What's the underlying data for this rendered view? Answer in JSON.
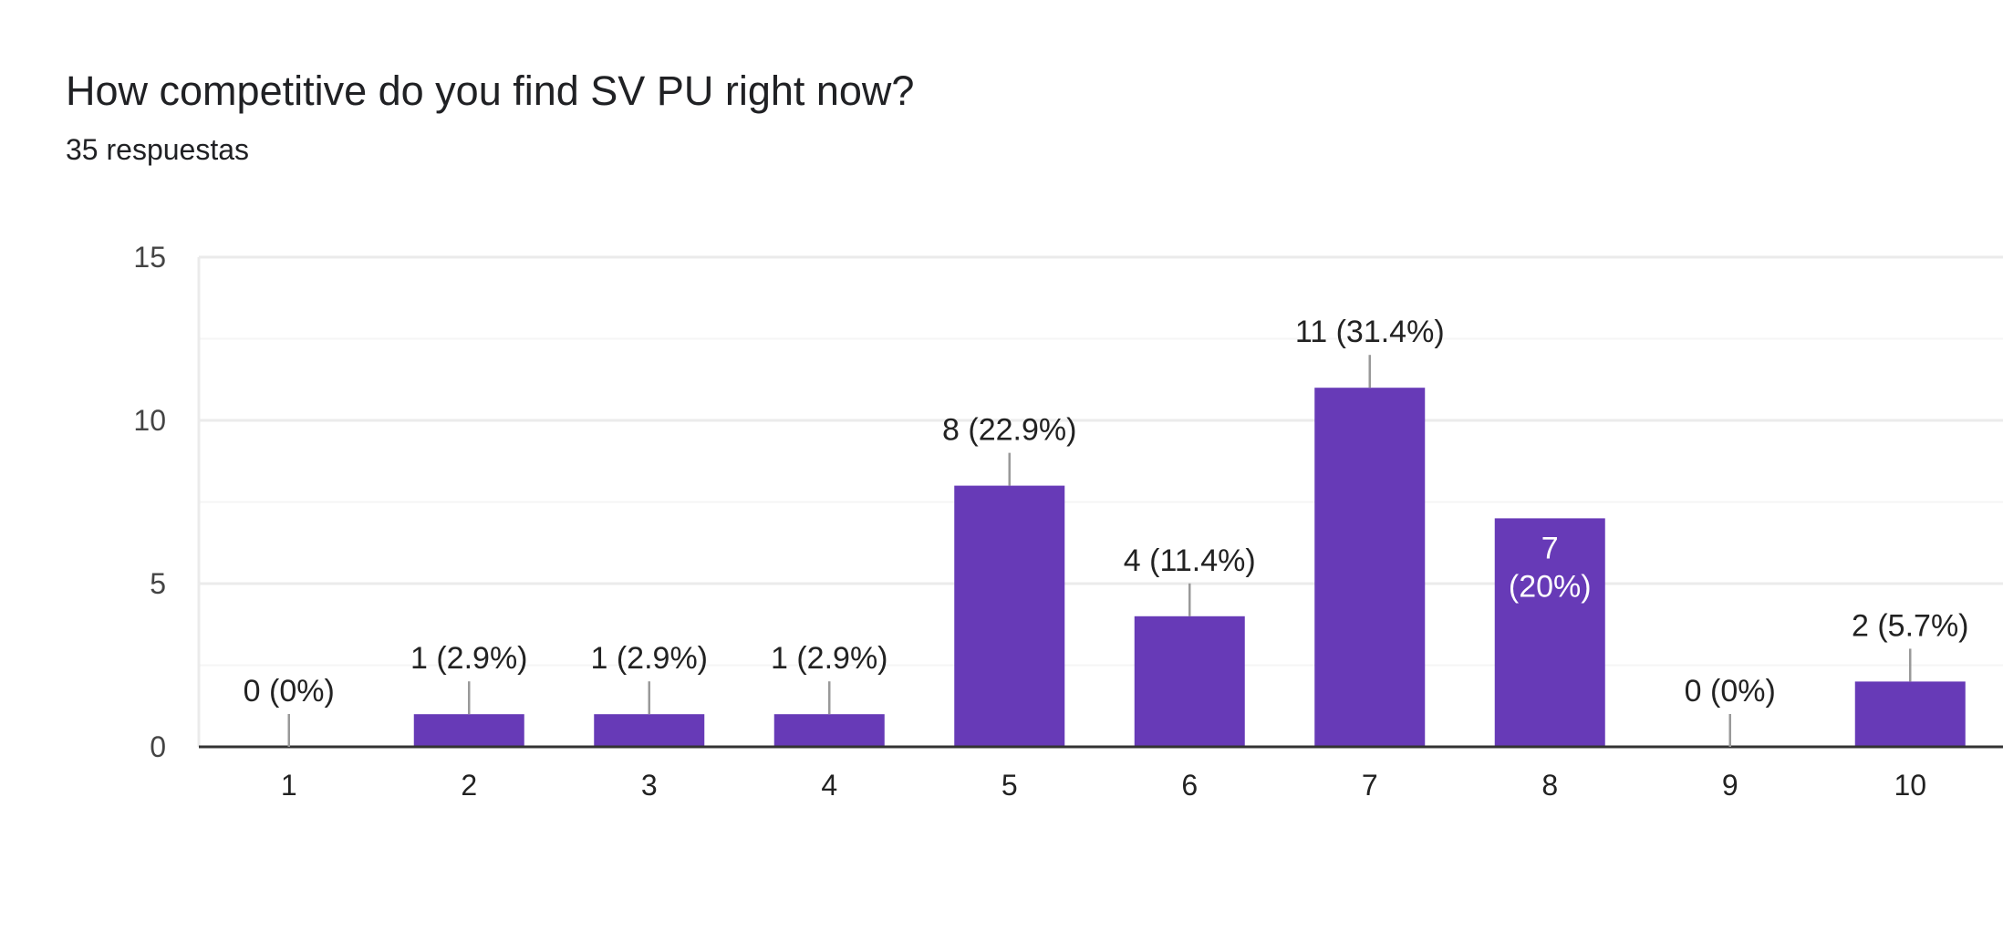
{
  "form": {
    "question": "How competitive do you find SV PU right now?",
    "responses": "35 respuestas"
  },
  "colors": {
    "bar": "#673ab7",
    "gridline": "#ebebeb",
    "minor_gridline": "#f5f5f5",
    "axis": "#333333",
    "text": "#222222",
    "inside_label": "#ffffff"
  },
  "chart_data": {
    "type": "bar",
    "title": "How competitive do you find SV PU right now?",
    "xlabel": "",
    "ylabel": "",
    "ylim": [
      0,
      15
    ],
    "yticks": [
      0,
      5,
      10,
      15
    ],
    "grid": true,
    "legend": "none",
    "categories": [
      "1",
      "2",
      "3",
      "4",
      "5",
      "6",
      "7",
      "8",
      "9",
      "10"
    ],
    "values": [
      0,
      1,
      1,
      1,
      8,
      4,
      11,
      7,
      0,
      2
    ],
    "labels": [
      "0 (0%)",
      "1 (2.9%)",
      "1 (2.9%)",
      "1 (2.9%)",
      "8 (22.9%)",
      "4 (11.4%)",
      "11 (31.4%)",
      "7 (20%)",
      "0 (0%)",
      "2 (5.7%)"
    ]
  }
}
